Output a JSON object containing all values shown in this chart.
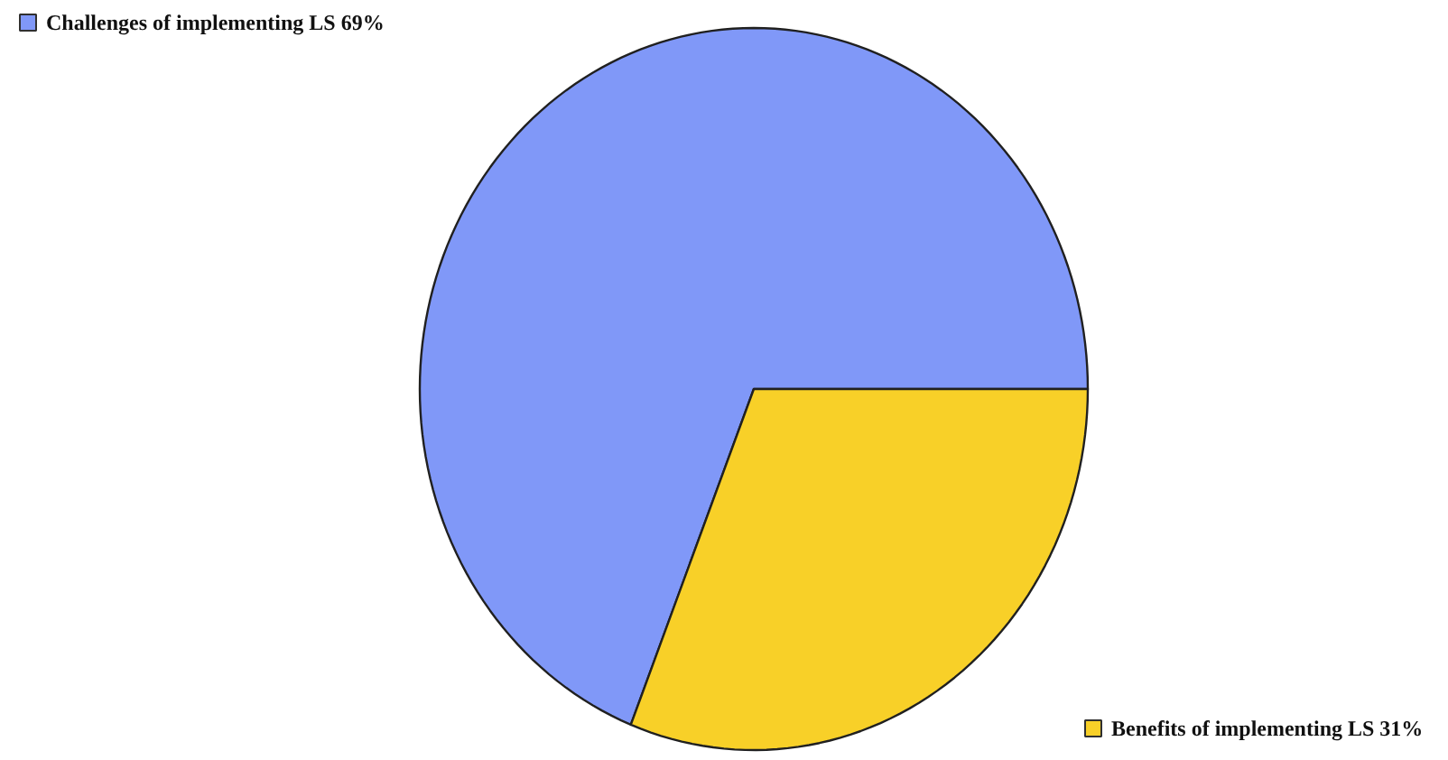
{
  "chart_data": {
    "type": "pie",
    "categories": [
      "Challenges of implementing LS",
      "Benefits of implementing LS"
    ],
    "values": [
      69,
      31
    ],
    "colors": [
      "#8098f8",
      "#f8d028"
    ],
    "value_labels": [
      "69%",
      "31%"
    ],
    "legend": "top left"
  }
}
